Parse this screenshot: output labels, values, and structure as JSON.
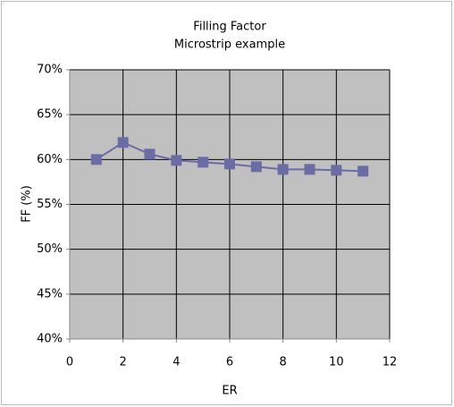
{
  "chart_data": {
    "type": "scatter-line",
    "title": "Filling Factor",
    "subtitle": "Microstrip example",
    "x_label": "ER",
    "y_label": "FF (%)",
    "x": [
      1,
      2,
      3,
      4,
      5,
      6,
      7,
      8,
      9,
      10,
      11
    ],
    "values": [
      60.0,
      61.9,
      60.6,
      59.9,
      59.7,
      59.5,
      59.2,
      58.9,
      58.9,
      58.8,
      58.7
    ],
    "color": "#6b6ba6",
    "xlim": [
      0,
      12
    ],
    "xticks": [
      0,
      2,
      4,
      6,
      8,
      10,
      12
    ],
    "ylim": [
      40,
      70
    ],
    "yticks": [
      {
        "value": 40,
        "label": "40%"
      },
      {
        "value": 45,
        "label": "45%"
      },
      {
        "value": 50,
        "label": "50%"
      },
      {
        "value": 55,
        "label": "55%"
      },
      {
        "value": 60,
        "label": "60%"
      },
      {
        "value": 65,
        "label": "65%"
      },
      {
        "value": 70,
        "label": "70%"
      }
    ],
    "grid": true
  }
}
